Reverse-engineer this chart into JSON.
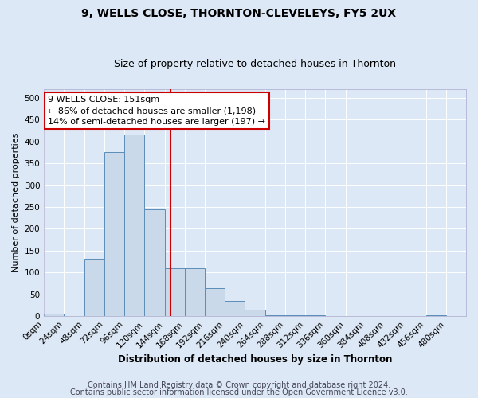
{
  "title": "9, WELLS CLOSE, THORNTON-CLEVELEYS, FY5 2UX",
  "subtitle": "Size of property relative to detached houses in Thornton",
  "xlabel": "Distribution of detached houses by size in Thornton",
  "ylabel": "Number of detached properties",
  "bin_edges": [
    0,
    24,
    48,
    72,
    96,
    120,
    144,
    168,
    192,
    216,
    240,
    264,
    288,
    312,
    336,
    360,
    384,
    408,
    432,
    456,
    480,
    504
  ],
  "bar_heights": [
    5,
    0,
    130,
    375,
    415,
    245,
    110,
    110,
    65,
    35,
    15,
    2,
    2,
    2,
    0,
    0,
    0,
    0,
    0,
    2,
    0
  ],
  "bar_color": "#c9d9ea",
  "bar_edge_color": "#5b8db8",
  "property_size": 151,
  "vline_color": "#cc0000",
  "annotation_line1": "9 WELLS CLOSE: 151sqm",
  "annotation_line2": "← 86% of detached houses are smaller (1,198)",
  "annotation_line3": "14% of semi-detached houses are larger (197) →",
  "annotation_box_color": "#ffffff",
  "annotation_box_edge_color": "#cc0000",
  "ylim": [
    0,
    520
  ],
  "yticks": [
    0,
    50,
    100,
    150,
    200,
    250,
    300,
    350,
    400,
    450,
    500
  ],
  "xtick_labels": [
    "0sqm",
    "24sqm",
    "48sqm",
    "72sqm",
    "96sqm",
    "120sqm",
    "144sqm",
    "168sqm",
    "192sqm",
    "216sqm",
    "240sqm",
    "264sqm",
    "288sqm",
    "312sqm",
    "336sqm",
    "360sqm",
    "384sqm",
    "408sqm",
    "432sqm",
    "456sqm",
    "480sqm"
  ],
  "background_color": "#dce8f5",
  "plot_background": "#dce8f5",
  "grid_color": "#ffffff",
  "footer_line1": "Contains HM Land Registry data © Crown copyright and database right 2024.",
  "footer_line2": "Contains public sector information licensed under the Open Government Licence v3.0.",
  "title_fontsize": 10,
  "subtitle_fontsize": 9,
  "xlabel_fontsize": 8.5,
  "ylabel_fontsize": 8,
  "tick_fontsize": 7.5,
  "footer_fontsize": 7,
  "annot_fontsize": 8
}
